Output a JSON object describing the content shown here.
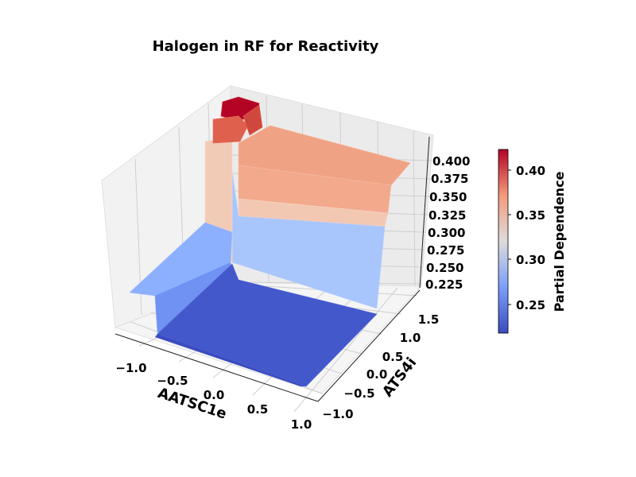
{
  "chart_data": {
    "type": "surface",
    "title": "Halogen in RF for Reactivity",
    "xlabel": "AATSC1e",
    "ylabel": "ATS4i",
    "zlabel": "",
    "colorbar_label": "Partial Dependence",
    "colormap": "coolwarm",
    "x_ticks": [
      "−1.0",
      "−0.5",
      "0.0",
      "0.5",
      "1.0"
    ],
    "y_ticks": [
      "−1.0",
      "−0.5",
      "0.0",
      "0.5",
      "1.0",
      "1.5"
    ],
    "z_ticks": [
      "0.225",
      "0.250",
      "0.275",
      "0.300",
      "0.325",
      "0.350",
      "0.375",
      "0.400"
    ],
    "colorbar_ticks": [
      "0.25",
      "0.30",
      "0.35",
      "0.40"
    ],
    "xlim": [
      -1.2,
      1.0
    ],
    "ylim": [
      -1.1,
      1.7
    ],
    "zlim": [
      0.215,
      0.42
    ],
    "colorbar_range": [
      0.215,
      0.42
    ],
    "surface_levels": {
      "base_low": 0.217,
      "step_low_plateau": 0.27,
      "mid_plateau": 0.285,
      "upper_plateau": 0.345,
      "upper_plateau_back": 0.37,
      "corner_peak": 0.42
    },
    "grid": true
  }
}
